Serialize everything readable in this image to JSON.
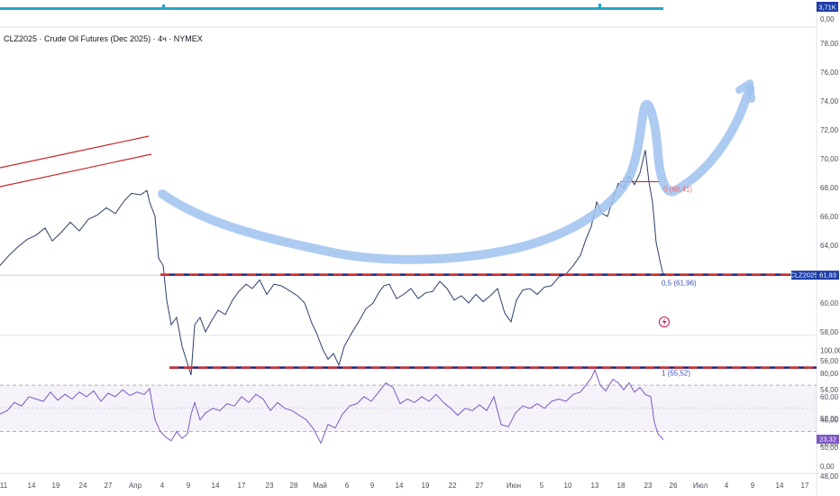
{
  "title": "CLZ2025 · Crude Oil Futures (Dec 2025) · 4ч · NYMEX",
  "colors": {
    "up": "#2c3e6b",
    "down": "#b22222",
    "rsi": "#7e57c2",
    "redLine": "#d32f2f",
    "navyLine": "#1a237e",
    "arrow": "#9fc2ee",
    "lastBadge": "#1e3fa8",
    "volume": "#26a6c8",
    "fibLabel": "#e57373",
    "fibBlue": "#3f51b5"
  },
  "volume_pane": {
    "ticks": [
      "0,00"
    ],
    "badge": "3,71K"
  },
  "price_axis": {
    "ticks": [
      "48,00",
      "50,00",
      "52,00",
      "54,00",
      "56,00",
      "58,00",
      "60,00",
      "62,00",
      "64,00",
      "66,00",
      "68,00",
      "70,00",
      "72,00",
      "74,00",
      "76,00",
      "78,00"
    ]
  },
  "rsi_axis": {
    "ticks": [
      "0,00",
      "20,00",
      "40,00",
      "60,00",
      "80,00",
      "100,00"
    ]
  },
  "x_labels": [
    "11",
    "14",
    "19",
    "24",
    "27",
    "Апр",
    "4",
    "9",
    "14",
    "17",
    "23",
    "28",
    "Май",
    "6",
    "9",
    "14",
    "19",
    "22",
    "27",
    "Июн",
    "5",
    "10",
    "13",
    "18",
    "23",
    "26",
    "Июл",
    "4",
    "9",
    "14",
    "17"
  ],
  "last_price_label": "CLZ2025",
  "last_price_value": "61,93",
  "rsi_value_label": "23,32",
  "fib_labels": {
    "top": "0 (68,41)",
    "mid": "0,5 (61,96)",
    "bottom": "1 (55,52)"
  },
  "chart_data": {
    "type": "candlestick",
    "symbol": "CLZ2025",
    "interval": "4h",
    "ylim": [
      47,
      79
    ],
    "close_path": [
      {
        "x": 0,
        "y": 62.6
      },
      {
        "x": 10,
        "y": 63.3
      },
      {
        "x": 20,
        "y": 63.9
      },
      {
        "x": 30,
        "y": 64.4
      },
      {
        "x": 40,
        "y": 64.7
      },
      {
        "x": 50,
        "y": 65.2
      },
      {
        "x": 58,
        "y": 64.3
      },
      {
        "x": 68,
        "y": 64.9
      },
      {
        "x": 78,
        "y": 65.6
      },
      {
        "x": 88,
        "y": 65.0
      },
      {
        "x": 98,
        "y": 65.8
      },
      {
        "x": 108,
        "y": 66.1
      },
      {
        "x": 118,
        "y": 66.6
      },
      {
        "x": 128,
        "y": 66.2
      },
      {
        "x": 138,
        "y": 67.1
      },
      {
        "x": 146,
        "y": 67.6
      },
      {
        "x": 156,
        "y": 67.5
      },
      {
        "x": 163,
        "y": 67.8
      },
      {
        "x": 166,
        "y": 67.0
      },
      {
        "x": 172,
        "y": 66.0
      },
      {
        "x": 176,
        "y": 63.1
      },
      {
        "x": 181,
        "y": 62.6
      },
      {
        "x": 185,
        "y": 60.2
      },
      {
        "x": 190,
        "y": 58.5
      },
      {
        "x": 196,
        "y": 59.0
      },
      {
        "x": 202,
        "y": 57.0
      },
      {
        "x": 207,
        "y": 56.0
      },
      {
        "x": 212,
        "y": 55.0
      },
      {
        "x": 216,
        "y": 58.5
      },
      {
        "x": 222,
        "y": 59.0
      },
      {
        "x": 228,
        "y": 58.0
      },
      {
        "x": 235,
        "y": 58.8
      },
      {
        "x": 242,
        "y": 59.5
      },
      {
        "x": 250,
        "y": 59.2
      },
      {
        "x": 258,
        "y": 60.2
      },
      {
        "x": 265,
        "y": 60.8
      },
      {
        "x": 273,
        "y": 61.3
      },
      {
        "x": 280,
        "y": 61.0
      },
      {
        "x": 288,
        "y": 61.6
      },
      {
        "x": 296,
        "y": 60.6
      },
      {
        "x": 304,
        "y": 61.3
      },
      {
        "x": 312,
        "y": 61.2
      },
      {
        "x": 320,
        "y": 60.9
      },
      {
        "x": 330,
        "y": 60.5
      },
      {
        "x": 338,
        "y": 60.0
      },
      {
        "x": 346,
        "y": 58.6
      },
      {
        "x": 352,
        "y": 57.8
      },
      {
        "x": 358,
        "y": 56.8
      },
      {
        "x": 364,
        "y": 56.1
      },
      {
        "x": 370,
        "y": 56.5
      },
      {
        "x": 376,
        "y": 55.7
      },
      {
        "x": 382,
        "y": 57.0
      },
      {
        "x": 390,
        "y": 57.9
      },
      {
        "x": 398,
        "y": 58.7
      },
      {
        "x": 406,
        "y": 59.6
      },
      {
        "x": 414,
        "y": 60.0
      },
      {
        "x": 420,
        "y": 60.7
      },
      {
        "x": 426,
        "y": 61.2
      },
      {
        "x": 432,
        "y": 61.3
      },
      {
        "x": 440,
        "y": 60.3
      },
      {
        "x": 448,
        "y": 60.6
      },
      {
        "x": 456,
        "y": 61.0
      },
      {
        "x": 464,
        "y": 60.3
      },
      {
        "x": 472,
        "y": 60.7
      },
      {
        "x": 480,
        "y": 60.8
      },
      {
        "x": 488,
        "y": 61.5
      },
      {
        "x": 496,
        "y": 61.0
      },
      {
        "x": 504,
        "y": 60.2
      },
      {
        "x": 512,
        "y": 60.5
      },
      {
        "x": 520,
        "y": 60.0
      },
      {
        "x": 528,
        "y": 60.6
      },
      {
        "x": 536,
        "y": 60.1
      },
      {
        "x": 544,
        "y": 60.5
      },
      {
        "x": 552,
        "y": 61.0
      },
      {
        "x": 560,
        "y": 59.3
      },
      {
        "x": 567,
        "y": 58.7
      },
      {
        "x": 573,
        "y": 60.2
      },
      {
        "x": 580,
        "y": 60.9
      },
      {
        "x": 588,
        "y": 61.0
      },
      {
        "x": 596,
        "y": 60.6
      },
      {
        "x": 604,
        "y": 61.1
      },
      {
        "x": 612,
        "y": 61.2
      },
      {
        "x": 620,
        "y": 61.8
      },
      {
        "x": 628,
        "y": 62.0
      },
      {
        "x": 636,
        "y": 62.6
      },
      {
        "x": 644,
        "y": 63.3
      },
      {
        "x": 650,
        "y": 64.4
      },
      {
        "x": 656,
        "y": 65.3
      },
      {
        "x": 662,
        "y": 67.0
      },
      {
        "x": 668,
        "y": 66.2
      },
      {
        "x": 674,
        "y": 66.0
      },
      {
        "x": 680,
        "y": 67.2
      },
      {
        "x": 686,
        "y": 68.3
      },
      {
        "x": 692,
        "y": 68.0
      },
      {
        "x": 698,
        "y": 68.8
      },
      {
        "x": 704,
        "y": 68.2
      },
      {
        "x": 710,
        "y": 69.0
      },
      {
        "x": 716,
        "y": 70.6
      },
      {
        "x": 720,
        "y": 68.4
      },
      {
        "x": 724,
        "y": 67.0
      },
      {
        "x": 728,
        "y": 64.2
      },
      {
        "x": 732,
        "y": 63.0
      },
      {
        "x": 736,
        "y": 61.9
      }
    ],
    "rsi_path": [
      {
        "x": 0,
        "y": 45
      },
      {
        "x": 8,
        "y": 48
      },
      {
        "x": 16,
        "y": 55
      },
      {
        "x": 24,
        "y": 52
      },
      {
        "x": 32,
        "y": 60
      },
      {
        "x": 40,
        "y": 58
      },
      {
        "x": 48,
        "y": 56
      },
      {
        "x": 56,
        "y": 64
      },
      {
        "x": 64,
        "y": 57
      },
      {
        "x": 72,
        "y": 62
      },
      {
        "x": 80,
        "y": 58
      },
      {
        "x": 88,
        "y": 64
      },
      {
        "x": 96,
        "y": 60
      },
      {
        "x": 104,
        "y": 65
      },
      {
        "x": 112,
        "y": 56
      },
      {
        "x": 120,
        "y": 63
      },
      {
        "x": 128,
        "y": 60
      },
      {
        "x": 136,
        "y": 66
      },
      {
        "x": 144,
        "y": 61
      },
      {
        "x": 152,
        "y": 64
      },
      {
        "x": 160,
        "y": 62
      },
      {
        "x": 166,
        "y": 67
      },
      {
        "x": 172,
        "y": 40
      },
      {
        "x": 178,
        "y": 30
      },
      {
        "x": 184,
        "y": 25
      },
      {
        "x": 190,
        "y": 22
      },
      {
        "x": 196,
        "y": 30
      },
      {
        "x": 202,
        "y": 24
      },
      {
        "x": 208,
        "y": 28
      },
      {
        "x": 212,
        "y": 45
      },
      {
        "x": 216,
        "y": 55
      },
      {
        "x": 222,
        "y": 40
      },
      {
        "x": 228,
        "y": 46
      },
      {
        "x": 236,
        "y": 50
      },
      {
        "x": 244,
        "y": 48
      },
      {
        "x": 252,
        "y": 54
      },
      {
        "x": 260,
        "y": 52
      },
      {
        "x": 268,
        "y": 60
      },
      {
        "x": 276,
        "y": 55
      },
      {
        "x": 284,
        "y": 62
      },
      {
        "x": 292,
        "y": 58
      },
      {
        "x": 300,
        "y": 48
      },
      {
        "x": 308,
        "y": 55
      },
      {
        "x": 316,
        "y": 50
      },
      {
        "x": 324,
        "y": 48
      },
      {
        "x": 332,
        "y": 44
      },
      {
        "x": 340,
        "y": 40
      },
      {
        "x": 348,
        "y": 32
      },
      {
        "x": 356,
        "y": 20
      },
      {
        "x": 364,
        "y": 36
      },
      {
        "x": 372,
        "y": 33
      },
      {
        "x": 380,
        "y": 45
      },
      {
        "x": 388,
        "y": 52
      },
      {
        "x": 396,
        "y": 54
      },
      {
        "x": 404,
        "y": 60
      },
      {
        "x": 412,
        "y": 56
      },
      {
        "x": 420,
        "y": 64
      },
      {
        "x": 428,
        "y": 72
      },
      {
        "x": 436,
        "y": 68
      },
      {
        "x": 444,
        "y": 54
      },
      {
        "x": 452,
        "y": 58
      },
      {
        "x": 460,
        "y": 55
      },
      {
        "x": 468,
        "y": 60
      },
      {
        "x": 476,
        "y": 56
      },
      {
        "x": 484,
        "y": 62
      },
      {
        "x": 492,
        "y": 55
      },
      {
        "x": 500,
        "y": 50
      },
      {
        "x": 508,
        "y": 44
      },
      {
        "x": 516,
        "y": 50
      },
      {
        "x": 524,
        "y": 48
      },
      {
        "x": 532,
        "y": 53
      },
      {
        "x": 540,
        "y": 48
      },
      {
        "x": 548,
        "y": 60
      },
      {
        "x": 556,
        "y": 36
      },
      {
        "x": 564,
        "y": 34
      },
      {
        "x": 572,
        "y": 46
      },
      {
        "x": 580,
        "y": 52
      },
      {
        "x": 588,
        "y": 50
      },
      {
        "x": 596,
        "y": 54
      },
      {
        "x": 604,
        "y": 50
      },
      {
        "x": 612,
        "y": 56
      },
      {
        "x": 620,
        "y": 58
      },
      {
        "x": 628,
        "y": 56
      },
      {
        "x": 636,
        "y": 62
      },
      {
        "x": 644,
        "y": 64
      },
      {
        "x": 650,
        "y": 70
      },
      {
        "x": 656,
        "y": 76
      },
      {
        "x": 660,
        "y": 83
      },
      {
        "x": 666,
        "y": 70
      },
      {
        "x": 672,
        "y": 65
      },
      {
        "x": 680,
        "y": 75
      },
      {
        "x": 686,
        "y": 72
      },
      {
        "x": 692,
        "y": 66
      },
      {
        "x": 698,
        "y": 72
      },
      {
        "x": 704,
        "y": 64
      },
      {
        "x": 710,
        "y": 68
      },
      {
        "x": 716,
        "y": 62
      },
      {
        "x": 722,
        "y": 60
      },
      {
        "x": 726,
        "y": 38
      },
      {
        "x": 730,
        "y": 28
      },
      {
        "x": 736,
        "y": 23
      }
    ],
    "rsi_bands": {
      "upper": 70,
      "middle": 50,
      "lower": 30
    },
    "horizontal_levels": [
      61.96,
      55.52
    ],
    "fib_levels": [
      {
        "level": 0,
        "value": 68.41
      },
      {
        "level": 0.5,
        "value": 61.96
      },
      {
        "level": 1,
        "value": 55.52
      }
    ],
    "last_price": 61.93,
    "rsi_last": 23.32
  }
}
